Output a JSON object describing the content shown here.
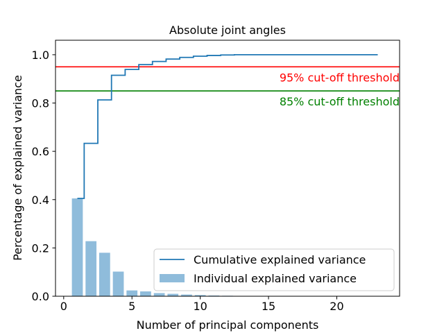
{
  "chart_data": {
    "type": "bar",
    "title": "Absolute joint angles",
    "xlabel": "Number of principal components",
    "ylabel": "Percentage of explained variance",
    "xlim": [
      -0.6,
      24.6
    ],
    "ylim": [
      0.0,
      1.06
    ],
    "xticks": [
      0,
      5,
      10,
      15,
      20
    ],
    "yticks": [
      0.0,
      0.2,
      0.4,
      0.6,
      0.8,
      1.0
    ],
    "xtick_labels": [
      "0",
      "5",
      "10",
      "15",
      "20"
    ],
    "ytick_labels": [
      "0.0",
      "0.2",
      "0.4",
      "0.6",
      "0.8",
      "1.0"
    ],
    "grid": false,
    "legend_position": "lower-right",
    "series": [
      {
        "name": "Individual explained variance",
        "type": "bar",
        "color": "#8fbcdb",
        "x": [
          1,
          2,
          3,
          4,
          5,
          6,
          7,
          8,
          9,
          10,
          11,
          12,
          13,
          14,
          15,
          16,
          17,
          18,
          19,
          20,
          21,
          22,
          23
        ],
        "values": [
          0.405,
          0.228,
          0.18,
          0.102,
          0.024,
          0.02,
          0.013,
          0.01,
          0.007,
          0.005,
          0.003,
          0.002,
          0.001,
          0.001,
          0.0,
          0.0,
          0.0,
          0.0,
          0.0,
          0.0,
          0.0,
          0.0,
          0.0
        ]
      },
      {
        "name": "Cumulative explained variance",
        "type": "step",
        "color": "#1f77b4",
        "x": [
          1,
          2,
          3,
          4,
          5,
          6,
          7,
          8,
          9,
          10,
          11,
          12,
          13,
          14,
          15,
          16,
          17,
          18,
          19,
          20,
          21,
          22,
          23
        ],
        "values": [
          0.405,
          0.633,
          0.813,
          0.915,
          0.939,
          0.959,
          0.972,
          0.982,
          0.989,
          0.994,
          0.997,
          0.999,
          1.0,
          1.0,
          1.0,
          1.0,
          1.0,
          1.0,
          1.0,
          1.0,
          1.0,
          1.0,
          1.0
        ]
      }
    ],
    "thresholds": [
      {
        "value": 0.95,
        "label": "95% cut-off threshold",
        "color": "#ff0000"
      },
      {
        "value": 0.85,
        "label": "85% cut-off threshold",
        "color": "#008000"
      }
    ]
  }
}
